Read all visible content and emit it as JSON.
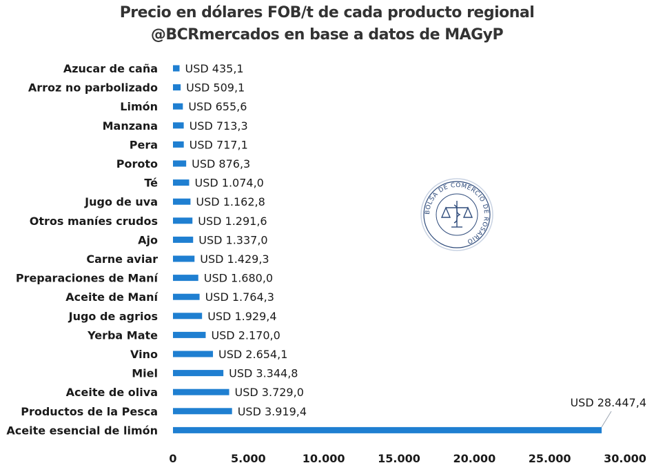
{
  "header": {
    "title_line1": "Precio en dólares FOB/t de cada producto regional",
    "title_line2": "@BCRmercados en base a datos de MAGyP"
  },
  "seal": {
    "text": "BOLSA DE COMERCIO DE ROSARIO"
  },
  "chart_data": {
    "type": "bar",
    "orientation": "horizontal",
    "title": "Precio en dólares FOB/t de cada producto regional",
    "subtitle": "@BCRmercados en base a datos de MAGyP",
    "xlabel": "",
    "ylabel": "",
    "xlim": [
      0,
      30000
    ],
    "xticks": [
      0,
      5000,
      10000,
      15000,
      20000,
      25000,
      30000
    ],
    "xtick_labels": [
      "0",
      "5.000",
      "10.000",
      "15.000",
      "20.000",
      "25.000",
      "30.000"
    ],
    "bar_color": "#1f7fd1",
    "grid": false,
    "categories": [
      "Azucar de caña",
      "Arroz no parbolizado",
      "Limón",
      "Manzana",
      "Pera",
      "Poroto",
      "Té",
      "Jugo de uva",
      "Otros maníes crudos",
      "Ajo",
      "Carne aviar",
      "Preparaciones de Maní",
      "Aceite de Maní",
      "Jugo de agrios",
      "Yerba Mate",
      "Vino",
      "Miel",
      "Aceite de oliva",
      "Productos de la Pesca",
      "Aceite esencial de limón"
    ],
    "values": [
      435.1,
      509.1,
      655.6,
      713.3,
      717.1,
      876.3,
      1074.0,
      1162.8,
      1291.6,
      1337.0,
      1429.3,
      1680.0,
      1764.3,
      1929.4,
      2170.0,
      2654.1,
      3344.8,
      3729.0,
      3919.4,
      28447.4
    ],
    "value_labels": [
      "USD 435,1",
      "USD 509,1",
      "USD 655,6",
      "USD 713,3",
      "USD 717,1",
      "USD 876,3",
      "USD 1.074,0",
      "USD 1.162,8",
      "USD 1.291,6",
      "USD 1.337,0",
      "USD 1.429,3",
      "USD 1.680,0",
      "USD 1.764,3",
      "USD 1.929,4",
      "USD 2.170,0",
      "USD 2.654,1",
      "USD 3.344,8",
      "USD 3.729,0",
      "USD 3.919,4",
      "USD 28.447,4"
    ]
  }
}
